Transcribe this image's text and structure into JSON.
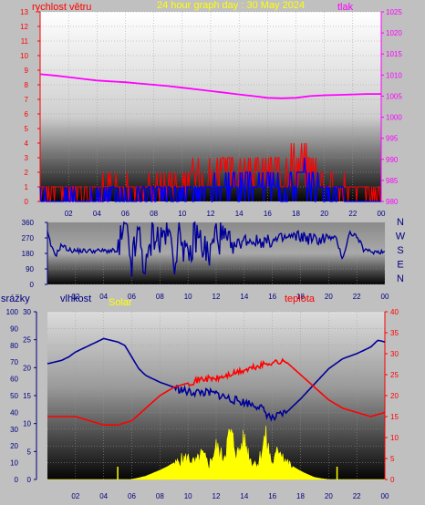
{
  "header": {
    "title": "24 hour graph day : 30 May 2024",
    "left_label": "rychlost větru",
    "right_label": "tlak"
  },
  "labels": {
    "rain": "srážky",
    "humidity": "vlhkost",
    "solar": "Solar",
    "temperature": "teplota"
  },
  "colors": {
    "wind": "#ff0000",
    "gust_avg": "#0000ff",
    "pressure": "#ff00ff",
    "direction": "#000099",
    "humidity": "#000099",
    "temperature": "#ff0000",
    "solar": "#ffff00",
    "axis_wind": "#ff0000",
    "axis_pressure": "#ff00ff",
    "axis_dir": "#000080",
    "axis_rain": "#000080",
    "axis_solar": "#000080",
    "axis_temp": "#ff0000",
    "time_tick": "#000080",
    "title": "#ffff00"
  },
  "chart_data": [
    {
      "type": "line",
      "name": "wind-pressure",
      "x_ticks": [
        "02",
        "04",
        "06",
        "08",
        "10",
        "12",
        "14",
        "16",
        "18",
        "20",
        "22",
        "00"
      ],
      "left_axis": {
        "label": "rychlost větru",
        "ticks": [
          0,
          1,
          2,
          3,
          4,
          5,
          6,
          7,
          8,
          9,
          10,
          11,
          12,
          13
        ],
        "ylim": [
          0,
          13
        ]
      },
      "right_axis": {
        "label": "tlak",
        "ticks": [
          980,
          985,
          990,
          995,
          1000,
          1005,
          1010,
          1015,
          1020,
          1025
        ],
        "ylim": [
          980,
          1025
        ]
      },
      "pressure": {
        "x": [
          0,
          1,
          2,
          3,
          4,
          5,
          6,
          7,
          8,
          9,
          10,
          11,
          12,
          13,
          14,
          15,
          16,
          17,
          18,
          19,
          20,
          21,
          22,
          23,
          24
        ],
        "y": [
          1010.2,
          1009.9,
          1009.5,
          1009.1,
          1008.7,
          1008.5,
          1008.3,
          1008.0,
          1007.7,
          1007.4,
          1007.0,
          1006.6,
          1006.2,
          1005.8,
          1005.4,
          1005.0,
          1004.6,
          1004.5,
          1004.6,
          1005.0,
          1005.2,
          1005.3,
          1005.4,
          1005.5,
          1005.5
        ]
      },
      "wind_max_envelope": {
        "x": [
          0,
          1,
          2,
          3,
          4,
          5,
          6,
          7,
          8,
          9,
          10,
          11,
          12,
          13,
          14,
          15,
          16,
          17,
          18,
          19,
          20,
          21,
          22,
          23,
          24
        ],
        "y": [
          1.2,
          1.0,
          1.2,
          1.0,
          1.2,
          1.5,
          1.3,
          1.4,
          1.5,
          1.8,
          2.0,
          2.2,
          2.5,
          3.0,
          2.8,
          2.5,
          3.0,
          2.8,
          4.0,
          3.5,
          2.0,
          1.5,
          1.2,
          1.0,
          0.8
        ]
      },
      "wind_avg_envelope": {
        "x": [
          0,
          1,
          2,
          3,
          4,
          5,
          6,
          7,
          8,
          9,
          10,
          11,
          12,
          13,
          14,
          15,
          16,
          17,
          18,
          19,
          20,
          21,
          22,
          23,
          24
        ],
        "y": [
          0.4,
          0.3,
          0.4,
          0.3,
          0.4,
          0.5,
          0.4,
          0.5,
          0.6,
          0.8,
          0.9,
          1.0,
          1.2,
          1.4,
          1.3,
          1.2,
          1.4,
          1.3,
          2.0,
          1.6,
          0.9,
          0.6,
          0.4,
          0.3,
          0.2
        ]
      }
    },
    {
      "type": "line",
      "name": "wind-direction",
      "x_ticks": [
        "02",
        "04",
        "06",
        "08",
        "10",
        "12",
        "14",
        "16",
        "18",
        "20",
        "22",
        "00"
      ],
      "left_axis": {
        "ticks": [
          0,
          90,
          180,
          270,
          360
        ],
        "labels": [
          "0",
          "90",
          "180",
          "270",
          "360"
        ],
        "ylim": [
          0,
          360
        ]
      },
      "compass_labels": [
        "N",
        "W",
        "S",
        "E",
        "N"
      ],
      "series": {
        "x": [
          0,
          0.3,
          0.6,
          1,
          1.5,
          2,
          3,
          4,
          4.8,
          5,
          5.5,
          6,
          6.5,
          7,
          7.5,
          8,
          8.5,
          9,
          9.5,
          10,
          10.5,
          11,
          11.5,
          12,
          12.5,
          13,
          14,
          15,
          16,
          17,
          18,
          19,
          20,
          20.5,
          21,
          21.5,
          22,
          22.5,
          23,
          24
        ],
        "y": [
          300,
          210,
          170,
          230,
          200,
          195,
          195,
          195,
          195,
          180,
          330,
          120,
          300,
          60,
          320,
          250,
          330,
          150,
          320,
          100,
          300,
          240,
          150,
          300,
          260,
          200,
          260,
          250,
          250,
          270,
          280,
          260,
          270,
          270,
          150,
          300,
          280,
          200,
          190,
          190
        ]
      }
    },
    {
      "type": "line",
      "name": "rain-humidity-solar-temperature",
      "x_ticks": [
        "02",
        "04",
        "06",
        "08",
        "10",
        "12",
        "14",
        "16",
        "18",
        "20",
        "22",
        "00"
      ],
      "rain_axis": {
        "label": "srážky",
        "ticks": [
          0,
          10,
          20,
          30,
          40,
          50,
          60,
          70,
          80,
          90,
          100
        ],
        "ylim": [
          0,
          100
        ]
      },
      "humidity_axis": {
        "label": "vlhkost",
        "ticks": [
          0,
          5,
          10,
          15,
          20,
          25,
          30
        ],
        "ylim": [
          0,
          30
        ]
      },
      "temperature_axis": {
        "label": "teplota",
        "ticks": [
          0,
          5,
          10,
          15,
          20,
          25,
          30,
          35,
          40
        ],
        "ylim": [
          0,
          40
        ]
      },
      "humidity": {
        "x": [
          0,
          0.5,
          1,
          1.5,
          2,
          3,
          4,
          5,
          5.5,
          6,
          6.5,
          7,
          8,
          9,
          10,
          11,
          12,
          13,
          14,
          15,
          16,
          17,
          18,
          19,
          20,
          21,
          22,
          23,
          23.5,
          24
        ],
        "y": [
          69,
          70,
          71,
          73,
          76,
          80,
          84,
          82,
          80,
          73,
          66,
          62,
          58,
          55,
          52,
          52,
          51,
          48,
          46,
          44,
          36,
          40,
          48,
          57,
          66,
          72,
          75,
          79,
          83,
          82
        ]
      },
      "temperature": {
        "x": [
          0,
          1,
          2,
          3,
          4,
          5,
          6,
          7,
          8,
          9,
          10,
          11,
          12,
          13,
          14,
          15,
          16,
          17,
          18,
          19,
          20,
          21,
          22,
          23,
          24
        ],
        "y": [
          15,
          15,
          15,
          14,
          13,
          13,
          14,
          17,
          20,
          22,
          23,
          24,
          24,
          25,
          26,
          27,
          28,
          28,
          25,
          22,
          19,
          17,
          16,
          15,
          16
        ]
      },
      "solar": {
        "x": [
          0,
          5.9,
          6.4,
          7,
          7.5,
          8,
          8.5,
          9,
          9.5,
          10,
          10.5,
          11,
          11.5,
          12,
          12.5,
          13,
          13.5,
          14,
          14.5,
          15,
          15.5,
          16,
          16.5,
          17,
          17.5,
          18,
          18.5,
          19,
          19.5,
          20,
          24
        ],
        "y": [
          0,
          0,
          0.3,
          0.8,
          1.5,
          2.2,
          3.0,
          4.0,
          5.5,
          6.0,
          4.5,
          7.0,
          4.0,
          9.0,
          6.0,
          13.0,
          7.0,
          11.0,
          5.0,
          4.5,
          12.0,
          4.0,
          9.0,
          5.0,
          3.0,
          2.0,
          1.2,
          0.5,
          0.2,
          0,
          0
        ]
      }
    }
  ]
}
